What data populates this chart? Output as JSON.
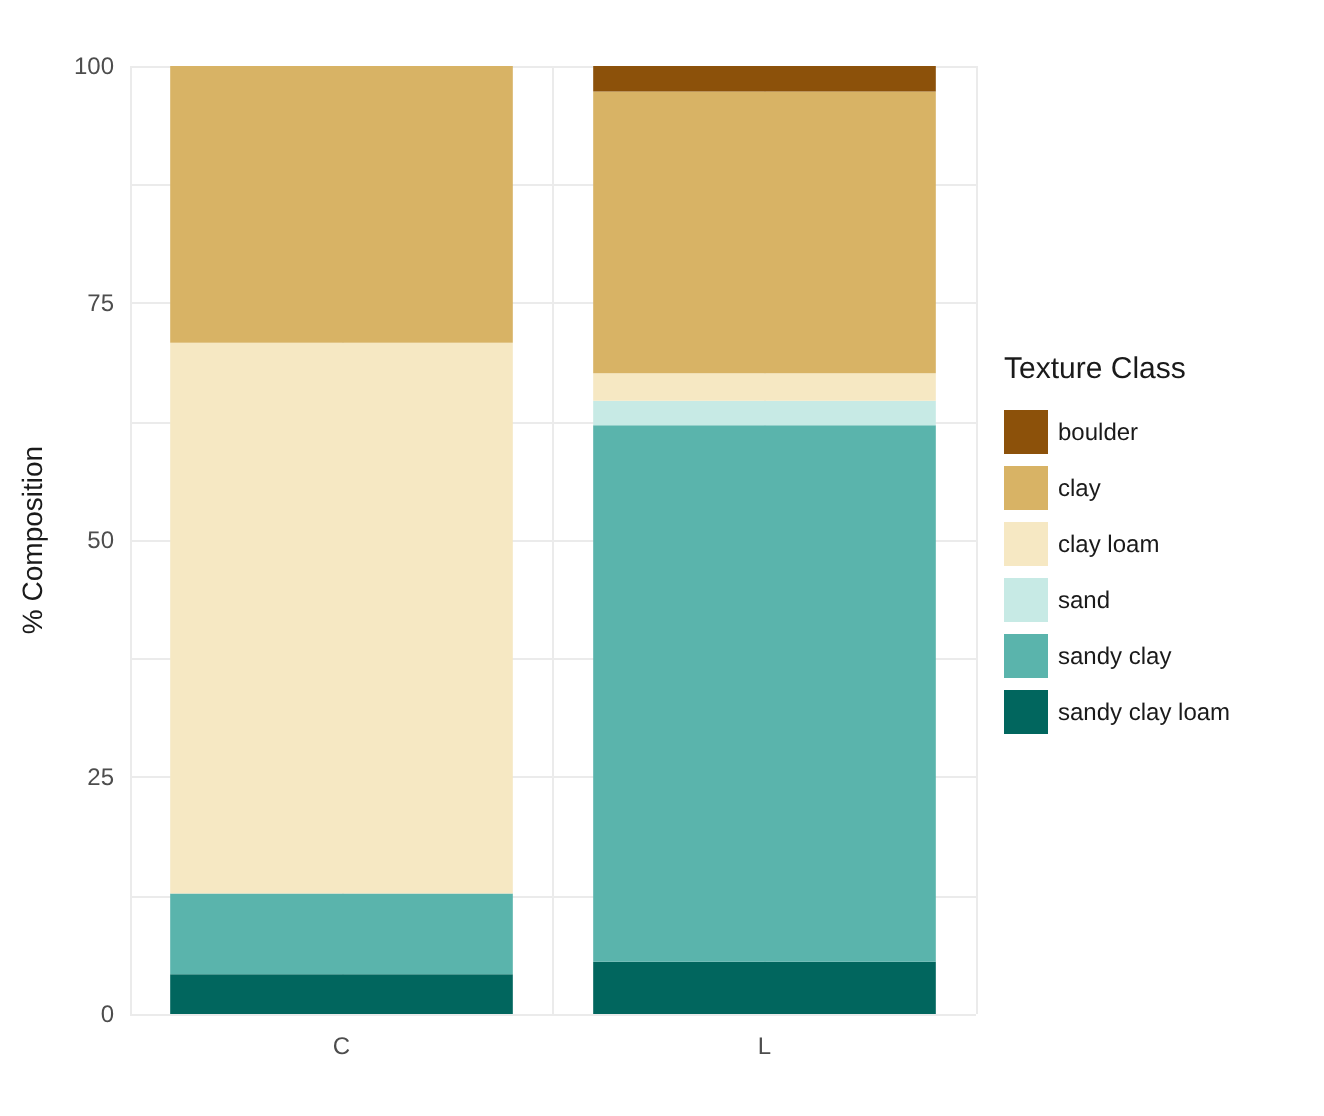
{
  "chart_data": {
    "type": "bar",
    "stacked": true,
    "ylabel": "% Composition",
    "legend_title": "Texture Class",
    "legend": "right",
    "grid": true,
    "categories": [
      "C",
      "L"
    ],
    "series": [
      {
        "name": "sandy clay loam",
        "color": "#01665e",
        "values": [
          4.2,
          5.5
        ]
      },
      {
        "name": "sandy clay",
        "color": "#5ab4ac",
        "values": [
          8.5,
          56.6
        ]
      },
      {
        "name": "sand",
        "color": "#c7eae5",
        "values": [
          null,
          2.6
        ]
      },
      {
        "name": "clay loam",
        "color": "#f6e8c3",
        "values": [
          58.1,
          2.9
        ]
      },
      {
        "name": "clay",
        "color": "#d8b365",
        "values": [
          29.2,
          29.7
        ]
      },
      {
        "name": "boulder",
        "color": "#8c510a",
        "values": [
          null,
          2.7
        ]
      }
    ],
    "ylim": [
      0,
      100
    ],
    "yticks": [
      0,
      {
        "value": 12.5,
        "label": null
      },
      25,
      {
        "value": 37.5,
        "label": null
      },
      50,
      {
        "value": 62.5,
        "label": null
      },
      75,
      {
        "value": 87.5,
        "label": null
      },
      100
    ]
  }
}
